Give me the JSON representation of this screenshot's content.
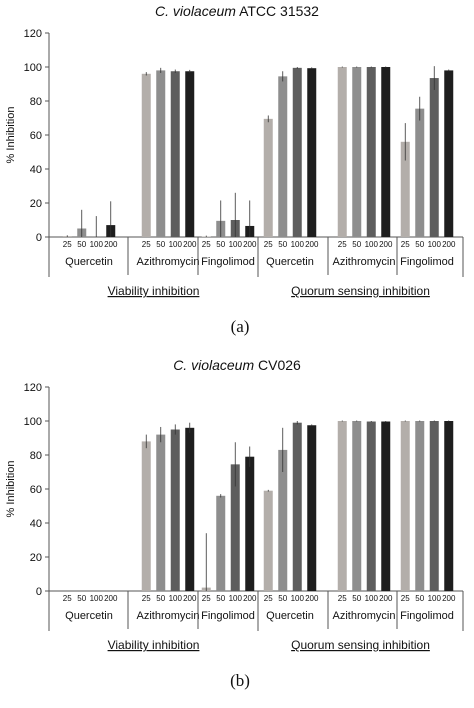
{
  "chart_data": [
    {
      "type": "bar",
      "title_italic": "C. violaceum",
      "title_rest": " ATCC 31532",
      "ylabel": "% Inhibition",
      "ylim": [
        0,
        120
      ],
      "yticks": [
        0,
        20,
        40,
        60,
        80,
        100,
        120
      ],
      "doses": [
        "25",
        "50",
        "100",
        "200"
      ],
      "series_colors": [
        "#b3aeaa",
        "#8e8e8e",
        "#5e5e5e",
        "#1e1e1e"
      ],
      "groups": [
        {
          "label": "Viability inhibition",
          "categories": [
            {
              "name": "Quercetin",
              "values": [
                0.5,
                5,
                0.3,
                7
              ],
              "errors": [
                0.5,
                11,
                12,
                14
              ]
            },
            {
              "name": "Azithromycin",
              "values": [
                96,
                98,
                97.5,
                97.5
              ],
              "errors": [
                1,
                1.5,
                1,
                0.8
              ]
            },
            {
              "name": "Fingolimod",
              "values": [
                0.3,
                9.5,
                10,
                6.5
              ],
              "errors": [
                0.5,
                12,
                16,
                15
              ]
            }
          ]
        },
        {
          "label": "Quorum sensing inhibition",
          "categories": [
            {
              "name": "Quercetin",
              "values": [
                69.5,
                94.5,
                99.5,
                99.3
              ],
              "errors": [
                2,
                3,
                0.5,
                0.5
              ]
            },
            {
              "name": "Azithromycin",
              "values": [
                100,
                100,
                100,
                100
              ],
              "errors": [
                0.3,
                0.3,
                0.3,
                0.3
              ]
            },
            {
              "name": "Fingolimod",
              "values": [
                56,
                75.5,
                93.5,
                98
              ],
              "errors": [
                11,
                7,
                7,
                0.5
              ]
            }
          ]
        }
      ],
      "panel_label": "(a)"
    },
    {
      "type": "bar",
      "title_italic": "C. violaceum",
      "title_rest": " CV026",
      "ylabel": "% Inhibition",
      "ylim": [
        0,
        120
      ],
      "yticks": [
        0,
        20,
        40,
        60,
        80,
        100,
        120
      ],
      "doses": [
        "25",
        "50",
        "100",
        "200"
      ],
      "series_colors": [
        "#b3aeaa",
        "#8e8e8e",
        "#5e5e5e",
        "#1e1e1e"
      ],
      "groups": [
        {
          "label": "Viability inhibition",
          "categories": [
            {
              "name": "Quercetin",
              "values": [
                0,
                0,
                0,
                0
              ],
              "errors": [
                0,
                0,
                0,
                0
              ]
            },
            {
              "name": "Azithromycin",
              "values": [
                88,
                92,
                95,
                96
              ],
              "errors": [
                4,
                4.5,
                3,
                3
              ]
            },
            {
              "name": "Fingolimod",
              "values": [
                2,
                56,
                74.5,
                79
              ],
              "errors": [
                32,
                1,
                13,
                6
              ]
            }
          ]
        },
        {
          "label": "Quorum sensing inhibition",
          "categories": [
            {
              "name": "Quercetin",
              "values": [
                59,
                83,
                99,
                97.5
              ],
              "errors": [
                0.5,
                13,
                1,
                0.5
              ]
            },
            {
              "name": "Azithromycin",
              "values": [
                100,
                100,
                99.7,
                99.7
              ],
              "errors": [
                0.3,
                0.3,
                0.3,
                0.3
              ]
            },
            {
              "name": "Fingolimod",
              "values": [
                100,
                100,
                100,
                100
              ],
              "errors": [
                0.3,
                0.3,
                0.3,
                0.3
              ]
            }
          ]
        }
      ],
      "panel_label": "(b)"
    }
  ]
}
